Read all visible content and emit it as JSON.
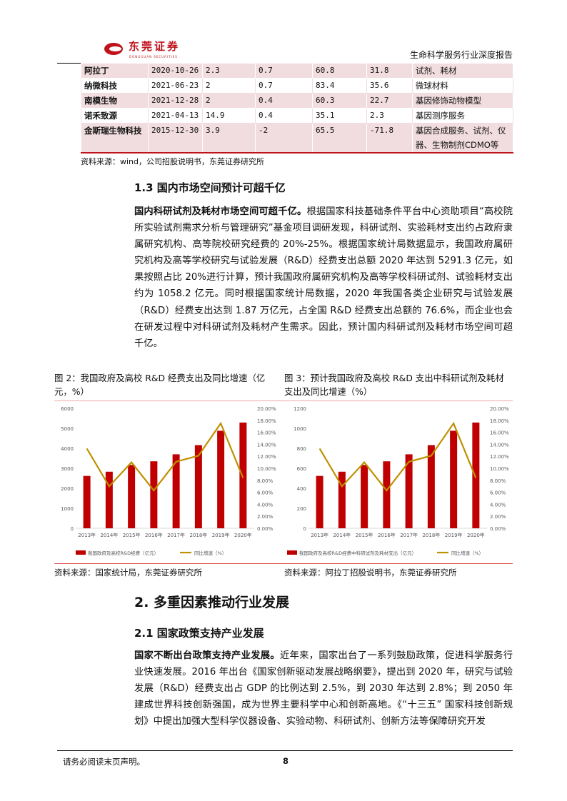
{
  "header": {
    "logo_text": "东莞证券",
    "logo_sub": "DONGGUAN SECURITIES",
    "report_title": "生命科学服务行业深度报告"
  },
  "table": {
    "rows": [
      [
        "阿拉丁",
        "2020-10-26",
        "2.3",
        "0.7",
        "60.8",
        "31.8",
        "试剂、耗材"
      ],
      [
        "纳微科技",
        "2021-06-23",
        "2",
        "0.7",
        "83.4",
        "35.6",
        "微球材料"
      ],
      [
        "南模生物",
        "2021-12-28",
        "2",
        "0.4",
        "60.3",
        "22.7",
        "基因修饰动物模型"
      ],
      [
        "诺禾致源",
        "2021-04-13",
        "14.9",
        "0.4",
        "35.1",
        "2.3",
        "基因测序服务"
      ],
      [
        "金斯瑞生物科技",
        "2015-12-30",
        "3.9",
        "-2",
        "65.5",
        "-71.8",
        "基因合成服务、试剂、仪器、生物制剂CDMO等"
      ]
    ],
    "source": "资料来源：wind，公司招股说明书，东莞证券研究所"
  },
  "section13": {
    "heading": "1.3 国内市场空间预计可超千亿",
    "lead": "国内科研试剂及耗材市场空间可超千亿。",
    "body": "根据国家科技基础条件平台中心资助项目“高校院所实验试剂需求分析与管理研究”基金项目调研发现，科研试剂、实验耗材支出约占政府隶属研究机构、高等院校研究经费的 20%-25%。根据国家统计局数据显示，我国政府属研究机构及高等学校研究与试验发展（R&D）经费支出总额 2020 年达到 5291.3 亿元，如果按照占比 20%进行计算，预计我国政府属研究机构及高等学校科研试剂、试验耗材支出约为 1058.2 亿元。同时根据国家统计局数据，2020 年我国各类企业研究与试验发展（R&D）经费支出达到 1.87 万亿元，占全国 R&D 经费支出总额的 76.6%，而企业也会在研发过程中对科研试剂及耗材产生需求。因此，预计国内科研试剂及耗材市场空间可超千亿。"
  },
  "figures": {
    "fig2_caption": "图 2：我国政府及高校 R&D 经费支出及同比增速（亿元，%）",
    "fig3_caption": "图 3：预计我国政府及高校 R&D 支出中科研试剂及耗材支出及同比增速（%）",
    "fig2_source": "资料来源：国家统计局，东莞证券研究所",
    "fig3_source": "资料来源：阿拉丁招股说明书，东莞证券研究所"
  },
  "chart_data": [
    {
      "type": "bar",
      "categories": [
        "2013年",
        "2014年",
        "2015年",
        "2016年",
        "2017年",
        "2018年",
        "2019年",
        "2020年"
      ],
      "series": [
        {
          "name": "我国政府及高校R&D经费（亿元）",
          "type": "bar",
          "axis": "left",
          "color": "#c00000",
          "values": [
            2620,
            2830,
            3170,
            3350,
            3700,
            4160,
            4880,
            5291.3
          ]
        },
        {
          "name": "同比增速（%）",
          "type": "line",
          "axis": "right",
          "color": "#bf9000",
          "values": [
            13.3,
            7.0,
            11.0,
            6.3,
            11.1,
            12.1,
            17.5,
            8.4
          ]
        }
      ],
      "ylim": [
        0,
        6000
      ],
      "yticks": [
        "0",
        "1000",
        "2000",
        "3000",
        "4000",
        "5000",
        "6000"
      ],
      "y2lim": [
        0,
        20
      ],
      "y2ticks": [
        "0.00%",
        "2.00%",
        "4.00%",
        "6.00%",
        "8.00%",
        "10.00%",
        "12.00%",
        "14.00%",
        "16.00%",
        "18.00%",
        "20.00%"
      ],
      "legend": "bottom"
    },
    {
      "type": "bar",
      "categories": [
        "2013年",
        "2014年",
        "2015年",
        "2016年",
        "2017年",
        "2018年",
        "2019年",
        "2020年"
      ],
      "series": [
        {
          "name": "我国政府及高校R&D经费中科研试剂及耗材支出（亿元）",
          "type": "bar",
          "axis": "left",
          "color": "#c00000",
          "values": [
            524,
            566,
            634,
            670,
            740,
            832,
            976,
            1058.2
          ]
        },
        {
          "name": "同比增速（%）",
          "type": "line",
          "axis": "right",
          "color": "#bf9000",
          "values": [
            13.3,
            7.0,
            11.0,
            6.3,
            11.1,
            12.1,
            17.5,
            8.4
          ]
        }
      ],
      "ylim": [
        0,
        1200
      ],
      "yticks": [
        "0",
        "200",
        "400",
        "600",
        "800",
        "1000",
        "1200"
      ],
      "y2lim": [
        0,
        20
      ],
      "y2ticks": [
        "0.00%",
        "2.00%",
        "4.00%",
        "6.00%",
        "8.00%",
        "10.00%",
        "12.00%",
        "14.00%",
        "16.00%",
        "18.00%",
        "20.00%"
      ],
      "legend": "bottom"
    }
  ],
  "section2": {
    "heading": "2. 多重因素推动行业发展"
  },
  "section21": {
    "heading": "2.1 国家政策支持产业发展",
    "lead": "国家不断出台政策支持产业发展。",
    "body": "近年来，国家出台了一系列鼓励政策，促进科学服务行业快速发展。2016 年出台《国家创新驱动发展战略纲要》，提出到 2020 年，研究与试验发展（R&D）经费支出占 GDP 的比例达到 2.5%，到 2030 年达到 2.8%；到 2050 年建成世界科技创新强国，成为世界主要科学中心和创新高地。《“十三五” 国家科技创新规划》中提出加强大型科学仪器设备、实验动物、科研试剂、创新方法等保障研究开发"
  },
  "footer": {
    "disclaimer": "请务必阅读末页声明。",
    "page": "8"
  }
}
